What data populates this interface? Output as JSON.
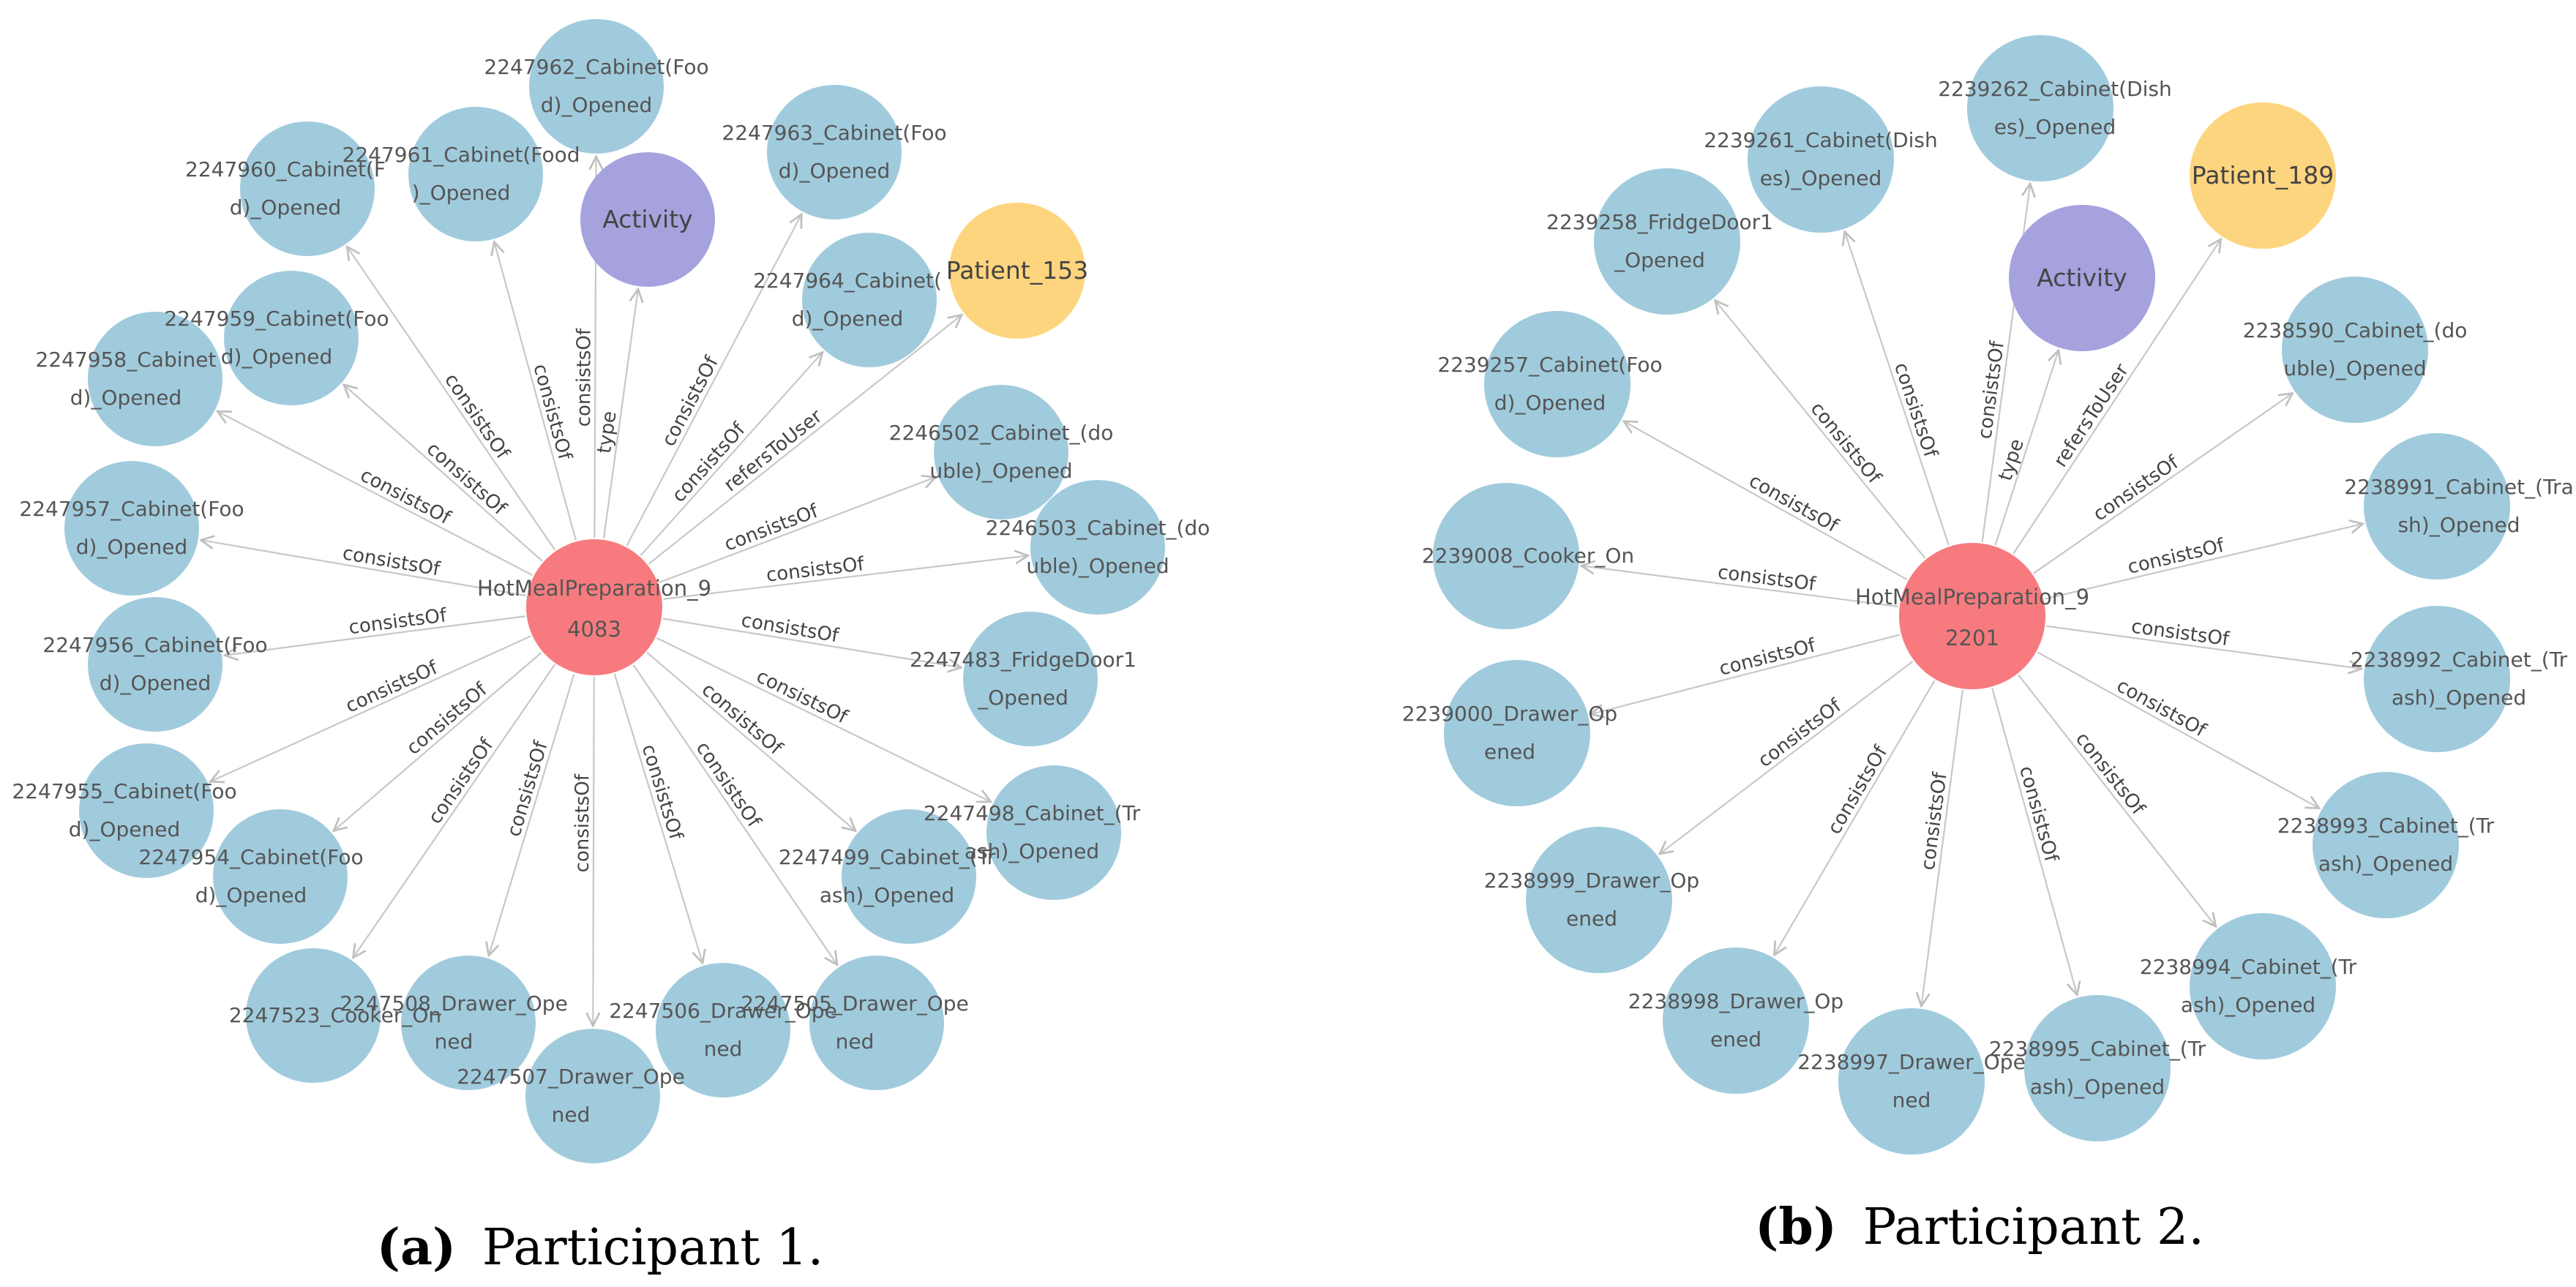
{
  "colors": {
    "activity_node": "#a6a2de",
    "user_node": "#fed57f",
    "center_node": "#f77b7e",
    "sensor_node": "#a0cbdd",
    "edge": "#c8c8c8"
  },
  "panels": [
    {
      "id": "p1",
      "caption_prefix": "(a)",
      "caption_text": "Participant 1.",
      "center": {
        "label_lines": [
          "HotMealPreparation_9",
          "4083"
        ]
      },
      "nodes": [
        {
          "id": "activity",
          "kind": "activity",
          "lines": [
            "Activity"
          ],
          "edge_label": "type"
        },
        {
          "id": "patient",
          "kind": "user",
          "lines": [
            "Patient_153"
          ],
          "edge_label": "refersToUser"
        },
        {
          "id": "n2247962",
          "kind": "sensor",
          "lines": [
            "2247962_Cabinet(Foo",
            "d)_Opened"
          ],
          "edge_label": "consistsOf"
        },
        {
          "id": "n2247961",
          "kind": "sensor",
          "lines": [
            "2247961_Cabinet(Food",
            ")_Opened"
          ],
          "edge_label": "consistsOf"
        },
        {
          "id": "n2247960",
          "kind": "sensor",
          "lines": [
            "2247960_Cabinet(F",
            "d)_Opened"
          ],
          "edge_label": "consistsOf"
        },
        {
          "id": "n2247963",
          "kind": "sensor",
          "lines": [
            "2247963_Cabinet(Foo",
            "d)_Opened"
          ],
          "edge_label": "consistsOf"
        },
        {
          "id": "n2247964",
          "kind": "sensor",
          "lines": [
            "2247964_Cabinet(",
            "d)_Opened"
          ],
          "edge_label": "consistsOf"
        },
        {
          "id": "n2247959",
          "kind": "sensor",
          "lines": [
            "2247959_Cabinet(Foo",
            "d)_Opened"
          ],
          "edge_label": "consistsOf"
        },
        {
          "id": "n2247958",
          "kind": "sensor",
          "lines": [
            "2247958_Cabinet",
            "d)_Opened"
          ],
          "edge_label": "consistsOf"
        },
        {
          "id": "n2246502",
          "kind": "sensor",
          "lines": [
            "2246502_Cabinet_(do",
            "uble)_Opened"
          ],
          "edge_label": "consistsOf"
        },
        {
          "id": "n2246503",
          "kind": "sensor",
          "lines": [
            "2246503_Cabinet_(do",
            "uble)_Opened"
          ],
          "edge_label": "consistsOf"
        },
        {
          "id": "n2247957",
          "kind": "sensor",
          "lines": [
            "2247957_Cabinet(Foo",
            "d)_Opened"
          ],
          "edge_label": "consistsOf"
        },
        {
          "id": "n2247956",
          "kind": "sensor",
          "lines": [
            "2247956_Cabinet(Foo",
            "d)_Opened"
          ],
          "edge_label": "consistsOf"
        },
        {
          "id": "n2247483",
          "kind": "sensor",
          "lines": [
            "2247483_FridgeDoor1",
            "_Opened"
          ],
          "edge_label": "consistsOf"
        },
        {
          "id": "n2247955",
          "kind": "sensor",
          "lines": [
            "2247955_Cabinet(Foo",
            "d)_Opened"
          ],
          "edge_label": "consistsOf"
        },
        {
          "id": "n2247498",
          "kind": "sensor",
          "lines": [
            "2247498_Cabinet_(Tr",
            "ash)_Opened"
          ],
          "edge_label": "consistsOf"
        },
        {
          "id": "n2247954",
          "kind": "sensor",
          "lines": [
            "2247954_Cabinet(Foo",
            "d)_Opened"
          ],
          "edge_label": "consistsOf"
        },
        {
          "id": "n2247499",
          "kind": "sensor",
          "lines": [
            "2247499_Cabinet_(Tr",
            "ash)_Opened"
          ],
          "edge_label": "consistsOf"
        },
        {
          "id": "n2247523",
          "kind": "sensor",
          "lines": [
            "2247523_Cooker_On"
          ],
          "edge_label": "consistsOf"
        },
        {
          "id": "n2247508",
          "kind": "sensor",
          "lines": [
            "2247508_Drawer_Ope",
            "ned"
          ],
          "edge_label": "consistsOf"
        },
        {
          "id": "n2247506",
          "kind": "sensor",
          "lines": [
            "2247506_Drawer_Ope",
            "ned"
          ],
          "edge_label": "consistsOf"
        },
        {
          "id": "n2247505",
          "kind": "sensor",
          "lines": [
            "2247505_Drawer_Ope",
            "ned"
          ],
          "edge_label": "consistsOf"
        },
        {
          "id": "n2247507",
          "kind": "sensor",
          "lines": [
            "2247507_Drawer_Ope",
            "ned"
          ],
          "edge_label": "consistsOf"
        }
      ]
    },
    {
      "id": "p2",
      "caption_prefix": "(b)",
      "caption_text": "Participant 2.",
      "center": {
        "label_lines": [
          "HotMealPreparation_9",
          "2201"
        ]
      },
      "nodes": [
        {
          "id": "n2239262",
          "kind": "sensor",
          "lines": [
            "2239262_Cabinet(Dish",
            "es)_Opened"
          ],
          "edge_label": "consistsOf"
        },
        {
          "id": "n2239261",
          "kind": "sensor",
          "lines": [
            "2239261_Cabinet(Dish",
            "es)_Opened"
          ],
          "edge_label": "consistsOf"
        },
        {
          "id": "patient",
          "kind": "user",
          "lines": [
            "Patient_189"
          ],
          "edge_label": "refersToUser"
        },
        {
          "id": "activity",
          "kind": "activity",
          "lines": [
            "Activity"
          ],
          "edge_label": "type"
        },
        {
          "id": "n2239258",
          "kind": "sensor",
          "lines": [
            "2239258_FridgeDoor1",
            "_Opened"
          ],
          "edge_label": "consistsOf"
        },
        {
          "id": "n2238590",
          "kind": "sensor",
          "lines": [
            "2238590_Cabinet_(do",
            "uble)_Opened"
          ],
          "edge_label": "consistsOf"
        },
        {
          "id": "n2239257",
          "kind": "sensor",
          "lines": [
            "2239257_Cabinet(Foo",
            "d)_Opened"
          ],
          "edge_label": "consistsOf"
        },
        {
          "id": "n2238991",
          "kind": "sensor",
          "lines": [
            "2238991_Cabinet_(Tra",
            "sh)_Opened"
          ],
          "edge_label": "consistsOf"
        },
        {
          "id": "n2239008",
          "kind": "sensor",
          "lines": [
            "2239008_Cooker_On"
          ],
          "edge_label": "consistsOf"
        },
        {
          "id": "n2238992",
          "kind": "sensor",
          "lines": [
            "2238992_Cabinet_(Tr",
            "ash)_Opened"
          ],
          "edge_label": "consistsOf"
        },
        {
          "id": "n2239000",
          "kind": "sensor",
          "lines": [
            "2239000_Drawer_Op",
            "ened"
          ],
          "edge_label": "consistsOf"
        },
        {
          "id": "n2238993",
          "kind": "sensor",
          "lines": [
            "2238993_Cabinet_(Tr",
            "ash)_Opened"
          ],
          "edge_label": "consistsOf"
        },
        {
          "id": "n2238999",
          "kind": "sensor",
          "lines": [
            "2238999_Drawer_Op",
            "ened"
          ],
          "edge_label": "consistsOf"
        },
        {
          "id": "n2238994",
          "kind": "sensor",
          "lines": [
            "2238994_Cabinet_(Tr",
            "ash)_Opened"
          ],
          "edge_label": "consistsOf"
        },
        {
          "id": "n2238998",
          "kind": "sensor",
          "lines": [
            "2238998_Drawer_Op",
            "ened"
          ],
          "edge_label": "consistsOf"
        },
        {
          "id": "n2238997",
          "kind": "sensor",
          "lines": [
            "2238997_Drawer_Ope",
            "ned"
          ],
          "edge_label": "consistsOf"
        },
        {
          "id": "n2238995",
          "kind": "sensor",
          "lines": [
            "2238995_Cabinet_(Tr",
            "ash)_Opened"
          ],
          "edge_label": "consistsOf"
        }
      ]
    }
  ]
}
